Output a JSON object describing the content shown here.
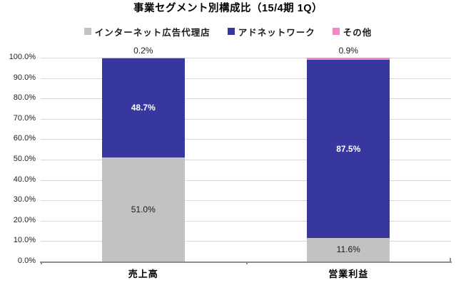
{
  "title": "事業セグメント別構成比（15/4期 1Q）",
  "chart_data": {
    "type": "bar",
    "variant": "stacked-percent",
    "title": "事業セグメント別構成比（15/4期 1Q）",
    "categories": [
      "売上高",
      "営業利益"
    ],
    "series": [
      {
        "name": "インターネット広告代理店",
        "color": "#c2c2c2",
        "label_color": "#1a1a1a",
        "label_weight": "normal",
        "values": [
          51.0,
          11.6
        ],
        "labels_outside": false
      },
      {
        "name": "アドネットワーク",
        "color": "#38379f",
        "label_color": "#ffffff",
        "label_weight": "bold",
        "values": [
          48.7,
          87.5
        ],
        "labels_outside": false
      },
      {
        "name": "その他",
        "color": "#f287c2",
        "label_color": "#1a1a1a",
        "label_weight": "normal",
        "values": [
          0.2,
          0.9
        ],
        "labels_outside": true
      }
    ],
    "value_suffix": "%",
    "ylim": [
      0,
      100
    ],
    "ytick_step": 10,
    "ytick_labels": [
      "0.0%",
      "10.0%",
      "20.0%",
      "30.0%",
      "40.0%",
      "50.0%",
      "60.0%",
      "70.0%",
      "80.0%",
      "90.0%",
      "100.0%"
    ],
    "grid": true,
    "legend_position": "top",
    "colors": {
      "gridline": "#d9d9d9",
      "axis": "#8c8c8c",
      "tick_label": "#1c1c28",
      "background": "#ffffff"
    }
  }
}
